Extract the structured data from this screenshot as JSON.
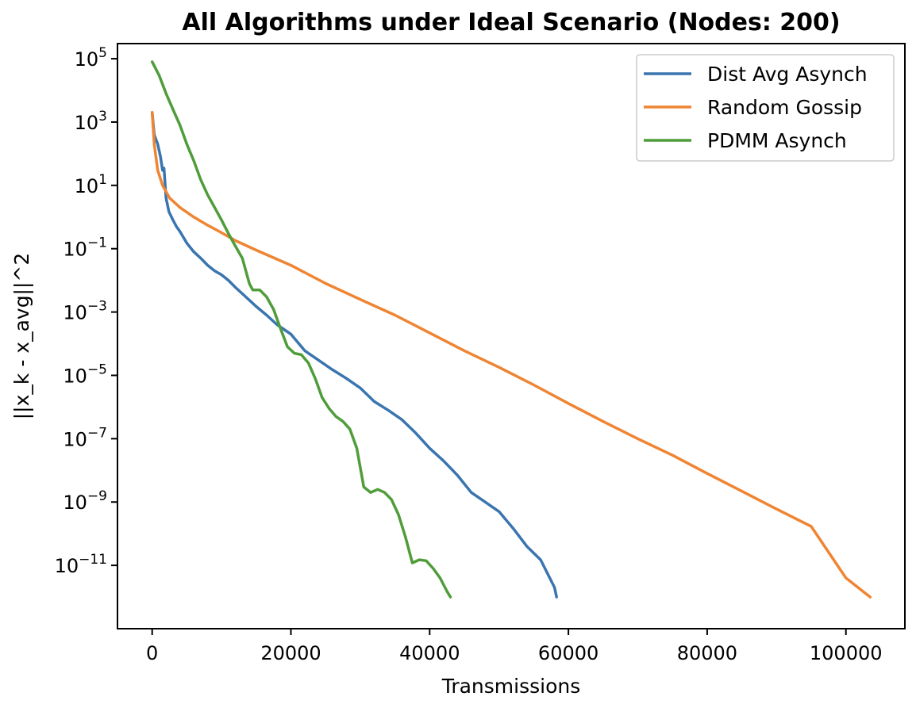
{
  "chart_data": {
    "type": "line",
    "title": "All Algorithms under Ideal Scenario (Nodes: 200)",
    "xlabel": "Transmissions",
    "ylabel": "||x_k - x_avg||^2",
    "xlim": [
      -5000,
      108500
    ],
    "ylim": [
      1e-13,
      300000.0
    ],
    "yscale": "log",
    "grid": false,
    "legend_position": "top-right",
    "x_ticks": [
      {
        "value": 0,
        "label": "0"
      },
      {
        "value": 20000,
        "label": "20000"
      },
      {
        "value": 40000,
        "label": "40000"
      },
      {
        "value": 60000,
        "label": "60000"
      },
      {
        "value": 80000,
        "label": "80000"
      },
      {
        "value": 100000,
        "label": "100000"
      }
    ],
    "y_ticks": [
      {
        "exp": 5,
        "base": "10",
        "sup": "5"
      },
      {
        "exp": 3,
        "base": "10",
        "sup": "3"
      },
      {
        "exp": 1,
        "base": "10",
        "sup": "1"
      },
      {
        "exp": -1,
        "base": "10",
        "sup": "−1"
      },
      {
        "exp": -3,
        "base": "10",
        "sup": "−3"
      },
      {
        "exp": -5,
        "base": "10",
        "sup": "−5"
      },
      {
        "exp": -7,
        "base": "10",
        "sup": "−7"
      },
      {
        "exp": -9,
        "base": "10",
        "sup": "−9"
      },
      {
        "exp": -11,
        "base": "10",
        "sup": "−11"
      }
    ],
    "series": [
      {
        "name": "Dist Avg Asynch",
        "color": "#3a75b0",
        "x": [
          0,
          300,
          800,
          1200,
          1500,
          1700,
          2000,
          2400,
          3000,
          3500,
          4000,
          5000,
          6000,
          7000,
          8000,
          9000,
          10000,
          11000,
          12000,
          13500,
          15000,
          16500,
          18000,
          20000,
          22000,
          24000,
          26000,
          28000,
          30000,
          32000,
          34000,
          36000,
          38000,
          40000,
          42000,
          44000,
          46000,
          48000,
          50000,
          52000,
          54000,
          56000,
          58000,
          58300
        ],
        "y": [
          2000,
          400,
          200,
          80,
          30,
          35,
          4,
          1.5,
          0.8,
          0.5,
          0.35,
          0.15,
          0.08,
          0.05,
          0.03,
          0.02,
          0.015,
          0.01,
          0.006,
          0.003,
          0.0015,
          0.0008,
          0.0004,
          0.0002,
          6e-05,
          3e-05,
          1.5e-05,
          8e-06,
          4e-06,
          1.5e-06,
          8e-07,
          4e-07,
          1.5e-07,
          5e-08,
          2e-08,
          7e-09,
          2e-09,
          1e-09,
          5e-10,
          1.5e-10,
          4e-11,
          1.5e-11,
          2e-12,
          1e-12
        ]
      },
      {
        "name": "Random Gossip",
        "color": "#ef8533",
        "x": [
          0,
          300,
          800,
          1500,
          2500,
          4000,
          6000,
          8000,
          10000,
          12000,
          15000,
          20000,
          25000,
          30000,
          35000,
          40000,
          45000,
          50000,
          55000,
          60000,
          65000,
          70000,
          75000,
          80000,
          85000,
          90000,
          95000,
          100000,
          103500
        ],
        "y": [
          2000,
          200,
          30,
          10,
          4,
          2,
          1,
          0.55,
          0.32,
          0.18,
          0.09,
          0.03,
          0.008,
          0.0025,
          0.0008,
          0.00022,
          6e-05,
          1.8e-05,
          5e-06,
          1.3e-06,
          3.5e-07,
          1e-07,
          3e-08,
          8e-09,
          2.2e-09,
          6e-10,
          1.7e-10,
          4e-12,
          1e-12
        ]
      },
      {
        "name": "PDMM Asynch",
        "color": "#4f9d3a",
        "x": [
          0,
          1000,
          2000,
          3000,
          4000,
          5000,
          6000,
          7000,
          8000,
          9000,
          10000,
          11000,
          12000,
          13000,
          14000,
          14500,
          15500,
          16500,
          17500,
          18500,
          19500,
          20500,
          21500,
          22500,
          23500,
          24500,
          25500,
          26500,
          27500,
          28500,
          29500,
          30500,
          31500,
          32500,
          33500,
          34500,
          35500,
          36500,
          37500,
          38500,
          39500,
          40500,
          41500,
          42500,
          43000
        ],
        "y": [
          80000,
          30000,
          8000,
          2500,
          800,
          200,
          60,
          15,
          5,
          2,
          0.8,
          0.3,
          0.12,
          0.05,
          0.008,
          0.005,
          0.005,
          0.003,
          0.0012,
          0.0003,
          8e-05,
          5e-05,
          4.5e-05,
          2.5e-05,
          8e-06,
          2e-06,
          9e-07,
          5e-07,
          3.5e-07,
          2e-07,
          5e-08,
          3e-09,
          2e-09,
          2.5e-09,
          2e-09,
          1.2e-09,
          4e-10,
          8e-11,
          1.2e-11,
          1.5e-11,
          1.4e-11,
          8e-12,
          4e-12,
          1.5e-12,
          1e-12
        ]
      }
    ]
  }
}
